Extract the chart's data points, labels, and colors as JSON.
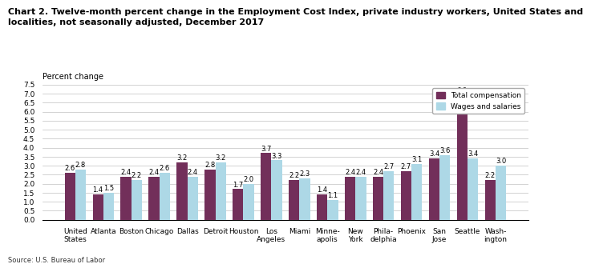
{
  "title_line1": "Chart 2. Twelve-month percent change in the Employment Cost Index, private industry workers, United States and",
  "title_line2": "localities, not seasonally adjusted, December 2017",
  "ylabel": "Percent change",
  "source": "Source: U.S. Bureau of Labor",
  "categories": [
    "United\nStates",
    "Atlanta",
    "Boston",
    "Chicago",
    "Dallas",
    "Detroit",
    "Houston",
    "Los\nAngeles",
    "Miami",
    "Minne-\napolis",
    "New\nYork",
    "Phila-\ndelphia",
    "Phoenix",
    "San\nJose",
    "Seattle",
    "Wash-\nington"
  ],
  "total_compensation": [
    2.6,
    1.4,
    2.4,
    2.4,
    3.2,
    2.8,
    1.7,
    3.7,
    2.2,
    1.4,
    2.4,
    2.4,
    2.7,
    3.4,
    6.9,
    2.2
  ],
  "wages_salaries": [
    2.8,
    1.5,
    2.2,
    2.6,
    2.4,
    3.2,
    2.0,
    3.3,
    2.3,
    1.1,
    2.4,
    2.7,
    3.1,
    3.6,
    3.4,
    3.0
  ],
  "color_total": "#722F5A",
  "color_wages": "#ADD8E6",
  "ylim": [
    0.0,
    7.5
  ],
  "yticks": [
    0.0,
    0.5,
    1.0,
    1.5,
    2.0,
    2.5,
    3.0,
    3.5,
    4.0,
    4.5,
    5.0,
    5.5,
    6.0,
    6.5,
    7.0,
    7.5
  ],
  "bar_width": 0.38,
  "legend_labels": [
    "Total compensation",
    "Wages and salaries"
  ],
  "title_fontsize": 8.0,
  "tick_fontsize": 6.5,
  "value_fontsize": 6.0,
  "source_fontsize": 6.0,
  "ylabel_fontsize": 7.0
}
